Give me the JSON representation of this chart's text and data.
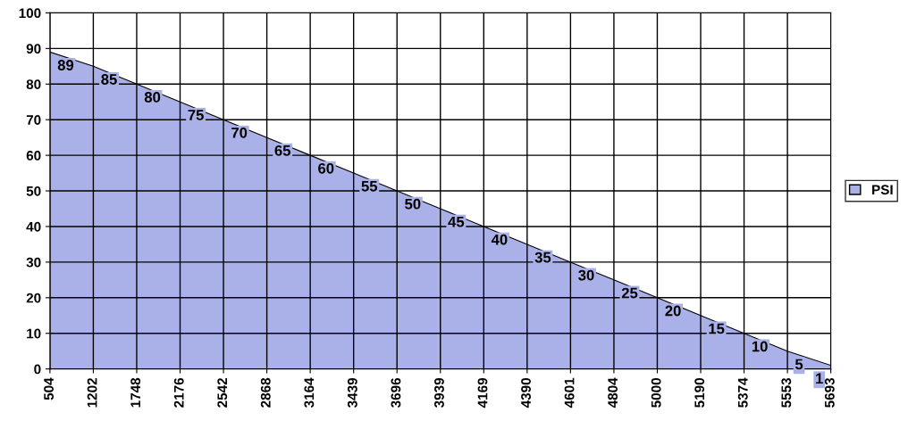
{
  "chart_data": {
    "type": "area",
    "categories": [
      "504",
      "1202",
      "1748",
      "2176",
      "2542",
      "2868",
      "3164",
      "3439",
      "3696",
      "3939",
      "4169",
      "4390",
      "4601",
      "4804",
      "5000",
      "5190",
      "5374",
      "5553",
      "5693"
    ],
    "series": [
      {
        "name": "PSI",
        "color": "#aab1e8",
        "values": [
          89,
          85,
          80,
          75,
          70,
          65,
          60,
          55,
          50,
          45,
          40,
          35,
          30,
          25,
          20,
          15,
          10,
          5,
          1
        ]
      }
    ],
    "ylim": [
      0,
      100
    ],
    "yticks": [
      0,
      10,
      20,
      30,
      40,
      50,
      60,
      70,
      80,
      90,
      100
    ],
    "grid": true,
    "legend": "right",
    "data_labels": true
  }
}
